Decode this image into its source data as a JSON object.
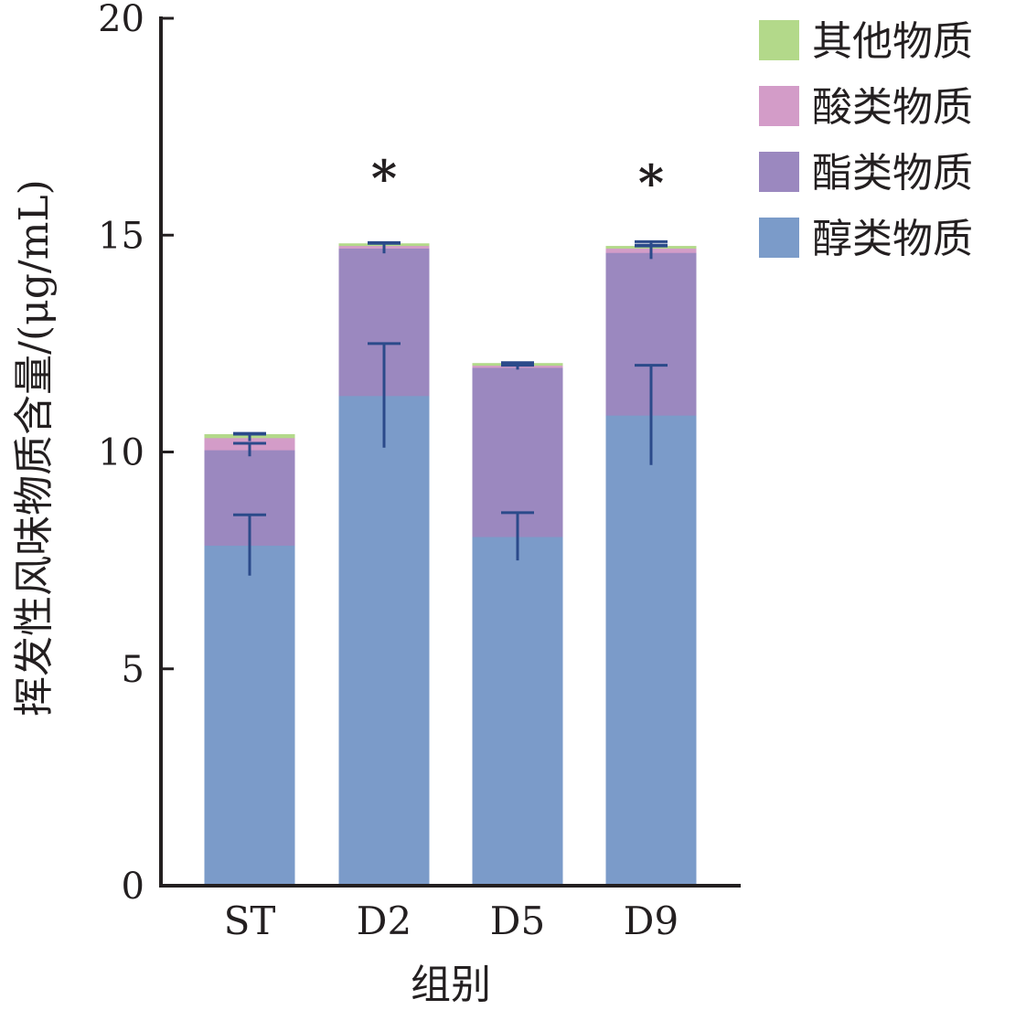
{
  "chart_data": {
    "type": "bar",
    "stacked": true,
    "categories": [
      "ST",
      "D2",
      "D5",
      "D9"
    ],
    "xlabel": "组别",
    "ylabel": "挥发性风味物质含量/(μg/mL)",
    "ylim": [
      0,
      20
    ],
    "yticks": [
      0,
      5,
      10,
      15,
      20
    ],
    "grid": false,
    "legend_position": "top-right",
    "series": [
      {
        "name": "醇类物质",
        "color": "#7b9bc9",
        "values": [
          7.85,
          11.3,
          8.05,
          10.85
        ],
        "errors": [
          0.7,
          1.2,
          0.55,
          1.15
        ]
      },
      {
        "name": "酯类物质",
        "color": "#9b88bf",
        "values": [
          2.2,
          3.4,
          3.9,
          3.75
        ],
        "errors": [
          0.15,
          0.12,
          0.05,
          0.15
        ]
      },
      {
        "name": "酸类物质",
        "color": "#d39cc8",
        "values": [
          0.28,
          0.06,
          0.05,
          0.1
        ],
        "errors": [
          0.08,
          0.05,
          0.04,
          0.15
        ]
      },
      {
        "name": "其他物质",
        "color": "#b3d98a",
        "values": [
          0.07,
          0.04,
          0.04,
          0.04
        ],
        "errors": [
          0.03,
          0.03,
          0.02,
          0.03
        ]
      }
    ],
    "legend_order": [
      "其他物质",
      "酸类物质",
      "酯类物质",
      "醇类物质"
    ],
    "annotations": [
      {
        "category": "D2",
        "text": "*"
      },
      {
        "category": "D9",
        "text": "*"
      }
    ],
    "axis_color": "#231f20",
    "errorbar_color": "#2b4a8a"
  }
}
